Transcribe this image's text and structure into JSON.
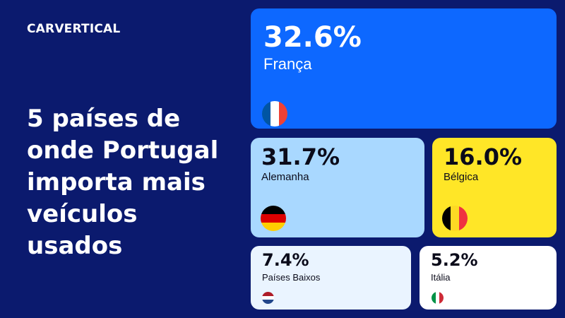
{
  "brand": "CARVERTICAL",
  "headline": "5 países de onde Portugal importa mais veículos usados",
  "chart_data": {
    "type": "table",
    "categories": [
      "França",
      "Alemanha",
      "Bélgica",
      "Países Baixos",
      "Itália"
    ],
    "values": [
      32.6,
      31.7,
      16.0,
      7.4,
      5.2
    ],
    "labels": [
      "32.6%",
      "31.7%",
      "16.0%",
      "7.4%",
      "5.2%"
    ],
    "colors": [
      "#0d68ff",
      "#a9d8ff",
      "#ffe627",
      "#eaf4ff",
      "#ffffff"
    ]
  },
  "cards": {
    "fr": {
      "value": "32.6%",
      "country": "França",
      "flag_icon": "france-flag-icon"
    },
    "de": {
      "value": "31.7%",
      "country": "Alemanha",
      "flag_icon": "germany-flag-icon"
    },
    "be": {
      "value": "16.0%",
      "country": "Bélgica",
      "flag_icon": "belgium-flag-icon"
    },
    "nl": {
      "value": "7.4%",
      "country": "Países Baixos",
      "flag_icon": "netherlands-flag-icon"
    },
    "it": {
      "value": "5.2%",
      "country": "Itália",
      "flag_icon": "italy-flag-icon"
    }
  }
}
